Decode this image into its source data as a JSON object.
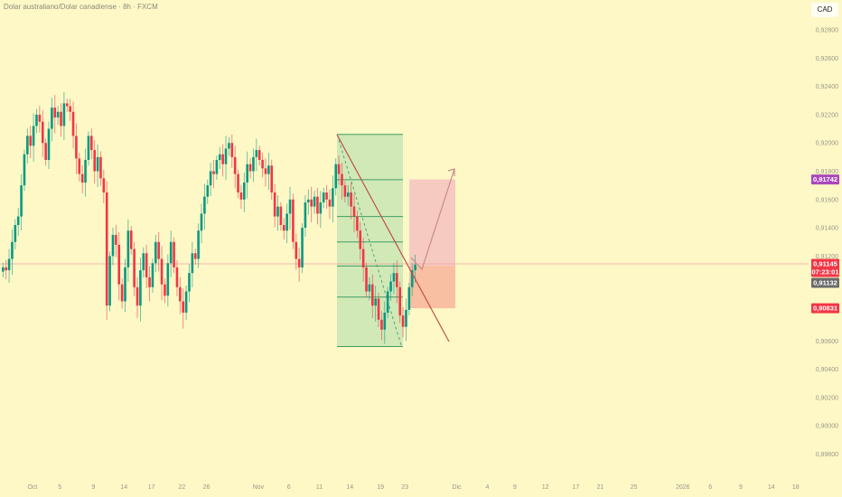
{
  "header": {
    "title": "Dolar australiano/Dolar canadiense · 8h · FXCM",
    "currency": "CAD"
  },
  "chart_data": {
    "type": "candlestick",
    "symbol": "AUDCAD",
    "interval": "8h",
    "ylim": [
      0.897,
      0.93
    ],
    "y_ticks": [
      "0,92800",
      "0,92600",
      "0,92400",
      "0,92200",
      "0,92000",
      "0,91800",
      "0,91600",
      "0,91400",
      "0,91200",
      "0,90600",
      "0,90400",
      "0,90200",
      "0,90000",
      "0,89800"
    ],
    "y_tick_values": [
      0.928,
      0.926,
      0.924,
      0.922,
      0.92,
      0.918,
      0.916,
      0.914,
      0.912,
      0.906,
      0.904,
      0.902,
      0.9,
      0.898
    ],
    "x_ticks": [
      "Oct",
      "5",
      "9",
      "14",
      "17",
      "22",
      "26",
      "Nov",
      "6",
      "11",
      "14",
      "19",
      "23",
      "Dic",
      "4",
      "9",
      "12",
      "17",
      "21",
      "25",
      "2026",
      "6",
      "9",
      "14",
      "18"
    ],
    "x_tick_bar_index": [
      10,
      19,
      30,
      40,
      49,
      59,
      67,
      84,
      94,
      104,
      114,
      124,
      132,
      149,
      159,
      168,
      178,
      188,
      196,
      207,
      223,
      232,
      242,
      252,
      260
    ],
    "closes": [
      0.9112,
      0.911,
      0.9118,
      0.913,
      0.9142,
      0.9148,
      0.917,
      0.9192,
      0.9205,
      0.9198,
      0.9212,
      0.922,
      0.9215,
      0.92,
      0.9188,
      0.921,
      0.9225,
      0.9218,
      0.9222,
      0.9212,
      0.9228,
      0.9226,
      0.9222,
      0.9205,
      0.9189,
      0.9178,
      0.9172,
      0.9188,
      0.9205,
      0.9195,
      0.918,
      0.919,
      0.9175,
      0.9165,
      0.9085,
      0.912,
      0.9135,
      0.9128,
      0.91,
      0.9088,
      0.9112,
      0.9138,
      0.9125,
      0.9098,
      0.9085,
      0.911,
      0.9122,
      0.9105,
      0.9098,
      0.9115,
      0.913,
      0.9118,
      0.91,
      0.9092,
      0.9115,
      0.913,
      0.9112,
      0.9098,
      0.9088,
      0.908,
      0.9095,
      0.9108,
      0.9122,
      0.9118,
      0.9138,
      0.915,
      0.9162,
      0.917,
      0.918,
      0.9178,
      0.9188,
      0.9192,
      0.9185,
      0.9196,
      0.92,
      0.919,
      0.9178,
      0.9165,
      0.916,
      0.9172,
      0.9185,
      0.918,
      0.919,
      0.9195,
      0.9188,
      0.9182,
      0.9178,
      0.9184,
      0.9165,
      0.9148,
      0.9155,
      0.9142,
      0.9138,
      0.915,
      0.916,
      0.913,
      0.9118,
      0.9112,
      0.914,
      0.9158,
      0.916,
      0.9155,
      0.9162,
      0.915,
      0.9158,
      0.9165,
      0.916,
      0.9155,
      0.9168,
      0.9185,
      0.9178,
      0.917,
      0.9162,
      0.9165,
      0.9155,
      0.9148,
      0.9138,
      0.9125,
      0.9112,
      0.9095,
      0.91,
      0.9085,
      0.909,
      0.9075,
      0.9068,
      0.908,
      0.9095,
      0.9102,
      0.9108,
      0.9098,
      0.9078,
      0.907,
      0.9082,
      0.9098,
      0.911,
      0.9114
    ],
    "current_price": 0.91145,
    "price_labels": [
      {
        "value": 0.91742,
        "text": "0,91742",
        "color": "#ab47bc"
      },
      {
        "value": 0.91145,
        "text": "0,91145",
        "sub": "07:23:01",
        "color": "#f23645"
      },
      {
        "value": 0.91132,
        "text": "0,91132",
        "color": "#6b6b6b"
      },
      {
        "value": 0.90831,
        "text": "0,90831",
        "color": "#f23645"
      }
    ],
    "fib_box": {
      "top": 0.9206,
      "bottom": 0.9056,
      "levels": [
        0.9206,
        0.9174,
        0.9148,
        0.913,
        0.9113,
        0.9091,
        0.9056
      ]
    },
    "position": {
      "entry": 0.91132,
      "target": 0.91742,
      "stop": 0.90831
    },
    "colors": {
      "up": "#089981",
      "down": "#f23645",
      "background": "#fdf8c6",
      "fib": "#8fd19e",
      "target": "#f5c2c0",
      "stop": "#f7b59c"
    }
  }
}
